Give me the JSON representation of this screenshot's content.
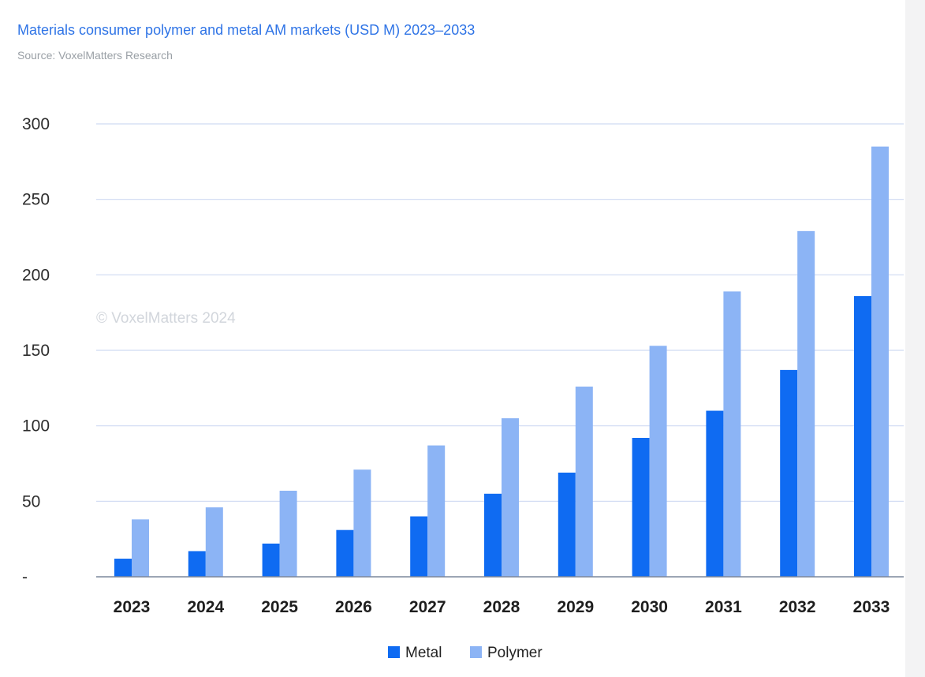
{
  "header": {
    "title": "Materials consumer polymer and metal AM markets (USD M) 2023–2033",
    "source": "Source: VoxelMatters Research"
  },
  "watermark": "© VoxelMatters 2024",
  "colors": {
    "metal": "#0f6bf2",
    "polymer": "#8cb4f5",
    "grid": "#cfdaf2",
    "axis": "#7c879c",
    "title": "#2f74e6"
  },
  "chart_data": {
    "type": "bar",
    "title": "Materials consumer polymer and metal AM markets (USD M) 2023–2033",
    "subtitle": "Source: VoxelMatters Research",
    "xlabel": "",
    "ylabel": "",
    "categories": [
      "2023",
      "2024",
      "2025",
      "2026",
      "2027",
      "2028",
      "2029",
      "2030",
      "2031",
      "2032",
      "2033"
    ],
    "series": [
      {
        "name": "Metal",
        "color": "#0f6bf2",
        "values": [
          12,
          17,
          22,
          31,
          40,
          55,
          69,
          92,
          110,
          137,
          186
        ]
      },
      {
        "name": "Polymer",
        "color": "#8cb4f5",
        "values": [
          38,
          46,
          57,
          71,
          87,
          105,
          126,
          153,
          189,
          229,
          285
        ]
      }
    ],
    "ylim": [
      0,
      300
    ],
    "yticks": [
      0,
      50,
      100,
      150,
      200,
      250,
      300
    ],
    "ytick_labels": [
      "-",
      "50",
      "100",
      "150",
      "200",
      "250",
      "300"
    ],
    "grid": true,
    "legend": "bottom-center"
  }
}
